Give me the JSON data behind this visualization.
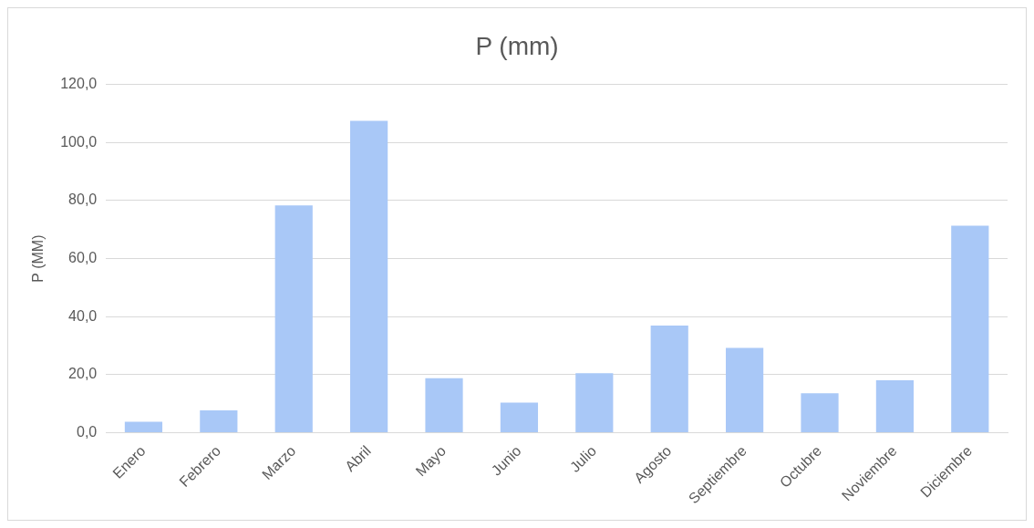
{
  "chart_data": {
    "type": "bar",
    "title": "P (mm)",
    "ylabel": "P (MM)",
    "categories": [
      "Enero",
      "Febrero",
      "Marzo",
      "Abril",
      "Mayo",
      "Junio",
      "Julio",
      "Agosto",
      "Septiembre",
      "Octubre",
      "Noviembre",
      "Diciembre"
    ],
    "values": [
      3.8,
      7.7,
      78.3,
      107.5,
      18.8,
      10.4,
      20.5,
      36.9,
      29.2,
      13.6,
      18.1,
      71.3
    ],
    "color": "#a9c8f7",
    "ylim": [
      0,
      120
    ],
    "yticks": [
      {
        "value": 0,
        "label": "0,0"
      },
      {
        "value": 20,
        "label": "20,0"
      },
      {
        "value": 40,
        "label": "40,0"
      },
      {
        "value": 60,
        "label": "60,0"
      },
      {
        "value": 80,
        "label": "80,0"
      },
      {
        "value": 100,
        "label": "100,0"
      },
      {
        "value": 120,
        "label": "120,0"
      }
    ],
    "grid": "y",
    "legend": false
  }
}
